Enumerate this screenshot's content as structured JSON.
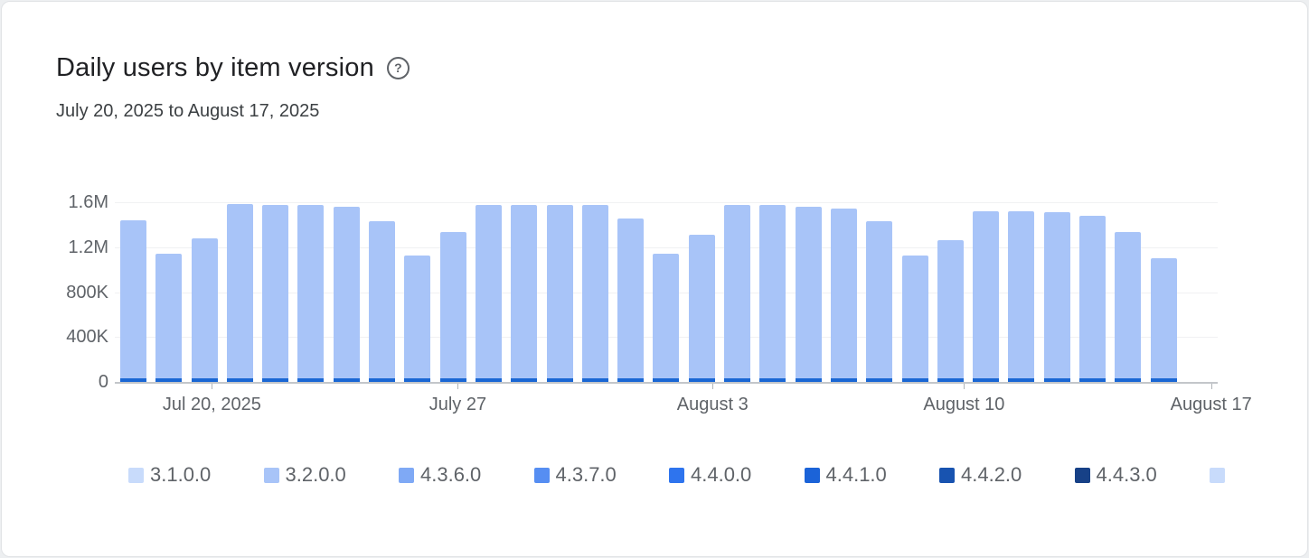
{
  "card": {
    "title": "Daily users by item version",
    "help_glyph": "?",
    "subtitle": "July 20, 2025 to August 17, 2025"
  },
  "chart_data": {
    "type": "bar",
    "stacked": true,
    "title": "Daily users by item version",
    "date_range": "July 20, 2025 to August 17, 2025",
    "unit": "daily users",
    "grid": true,
    "legend_position": "bottom",
    "y_axis": {
      "min": 0,
      "max": 1600000,
      "tick_labels_top_down": [
        "1.6M",
        "1.2M",
        "800K",
        "400K",
        "0"
      ]
    },
    "x_axis": {
      "tick_labels": [
        "Jul 20, 2025",
        "July 27",
        "August 3",
        "August 10",
        "August 17"
      ],
      "tick_positions_pct": [
        8.8,
        31.1,
        54.2,
        77.0,
        99.4
      ]
    },
    "bars": {
      "body_color": "#a8c4f8",
      "base_segment_color": "#1a67d4",
      "base_segment_value": 30000,
      "totals": [
        1440000,
        1140000,
        1280000,
        1580000,
        1570000,
        1570000,
        1555000,
        1430000,
        1120000,
        1330000,
        1570000,
        1570000,
        1570000,
        1570000,
        1450000,
        1140000,
        1310000,
        1570000,
        1570000,
        1555000,
        1540000,
        1430000,
        1120000,
        1260000,
        1520000,
        1520000,
        1510000,
        1480000,
        1330000,
        1100000
      ]
    },
    "legend": [
      {
        "label": "3.1.0.0",
        "color": "#c8dbfb"
      },
      {
        "label": "3.2.0.0",
        "color": "#a8c4f8"
      },
      {
        "label": "4.3.6.0",
        "color": "#7fa9f5"
      },
      {
        "label": "4.3.7.0",
        "color": "#568ef2"
      },
      {
        "label": "4.4.0.0",
        "color": "#2e74ee"
      },
      {
        "label": "4.4.1.0",
        "color": "#1b63d8"
      },
      {
        "label": "4.4.2.0",
        "color": "#1853b0"
      },
      {
        "label": "4.4.3.0",
        "color": "#174187"
      },
      {
        "label": "",
        "color": "#c8dbfb"
      }
    ]
  }
}
